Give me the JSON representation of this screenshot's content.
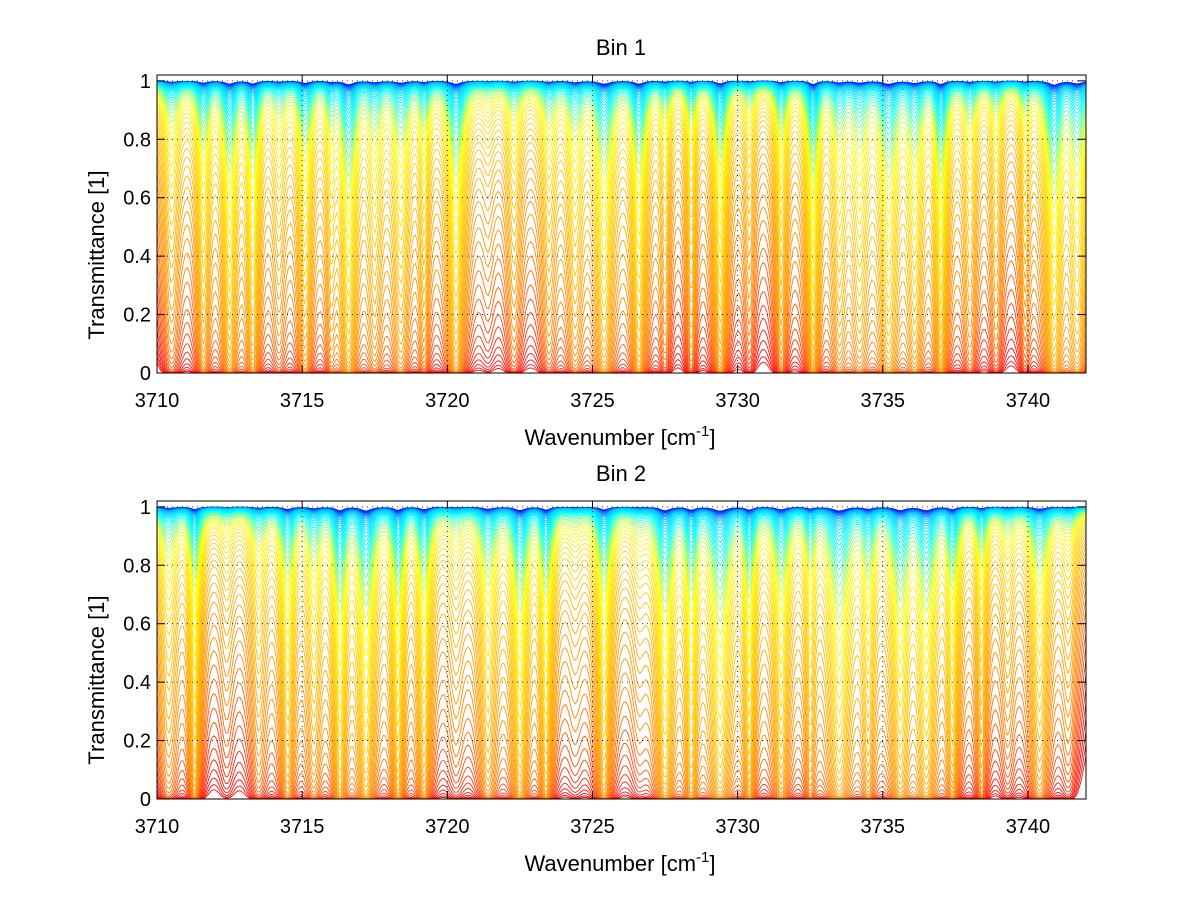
{
  "chart_data": [
    {
      "type": "line",
      "title": "Bin 1",
      "xlabel": "Wavenumber [cm",
      "xlabel_sup": "-1",
      "xlabel_end": "]",
      "ylabel": "Transmittance [1]",
      "xlim": [
        3710,
        3742
      ],
      "ylim": [
        0,
        1.02
      ],
      "x_ticks": [
        3710,
        3715,
        3720,
        3725,
        3730,
        3735,
        3740
      ],
      "y_ticks": [
        0,
        0.2,
        0.4,
        0.6,
        0.8,
        1
      ],
      "x_tick_labels": [
        "3710",
        "3715",
        "3720",
        "3725",
        "3730",
        "3735",
        "3740"
      ],
      "y_tick_labels": [
        "0",
        "0.2",
        "0.4",
        "0.6",
        "0.8",
        "1"
      ],
      "grid": "dotted",
      "series_count": 60,
      "colormap": "jet (blue at transmittance 1, yellow mid, red near 0)",
      "colormap_colors": [
        "#0000ff",
        "#00bfff",
        "#00ffff",
        "#ffff00",
        "#ffc000",
        "#ff8000",
        "#ff0000"
      ],
      "absorption_lines_cm1": [
        3710.5,
        3711.6,
        3712.5,
        3713.3,
        3714.2,
        3715.1,
        3716.0,
        3716.6,
        3717.5,
        3718.4,
        3719.2,
        3720.3,
        3721.4,
        3722.3,
        3723.5,
        3724.4,
        3725.4,
        3726.6,
        3727.5,
        3728.4,
        3729.4,
        3730.4,
        3731.5,
        3732.6,
        3733.5,
        3734.2,
        3735.2,
        3736.1,
        3737.0,
        3738.0,
        3738.9,
        3739.9,
        3740.9,
        3741.7
      ]
    },
    {
      "type": "line",
      "title": "Bin 2",
      "xlabel": "Wavenumber [cm",
      "xlabel_sup": "-1",
      "xlabel_end": "]",
      "ylabel": "Transmittance [1]",
      "xlim": [
        3710,
        3742
      ],
      "ylim": [
        0,
        1.02
      ],
      "x_ticks": [
        3710,
        3715,
        3720,
        3725,
        3730,
        3735,
        3740
      ],
      "y_ticks": [
        0,
        0.2,
        0.4,
        0.6,
        0.8,
        1
      ],
      "x_tick_labels": [
        "3710",
        "3715",
        "3720",
        "3725",
        "3730",
        "3735",
        "3740"
      ],
      "y_tick_labels": [
        "0",
        "0.2",
        "0.4",
        "0.6",
        "0.8",
        "1"
      ],
      "grid": "dotted",
      "series_count": 60,
      "colormap": "jet (blue at transmittance 1, yellow mid, red near 0)",
      "colormap_colors": [
        "#0000ff",
        "#00bfff",
        "#00ffff",
        "#ffff00",
        "#ffc000",
        "#ff8000",
        "#ff0000"
      ],
      "absorption_lines_cm1": [
        3710.4,
        3711.3,
        3712.4,
        3713.5,
        3714.5,
        3715.4,
        3716.3,
        3717.2,
        3718.3,
        3719.2,
        3720.3,
        3721.4,
        3722.5,
        3723.4,
        3724.4,
        3725.4,
        3726.6,
        3727.5,
        3728.4,
        3729.4,
        3730.4,
        3731.5,
        3732.5,
        3733.5,
        3734.5,
        3735.6,
        3736.5,
        3737.4,
        3738.4,
        3739.3,
        3740.4,
        3741.4
      ]
    }
  ]
}
